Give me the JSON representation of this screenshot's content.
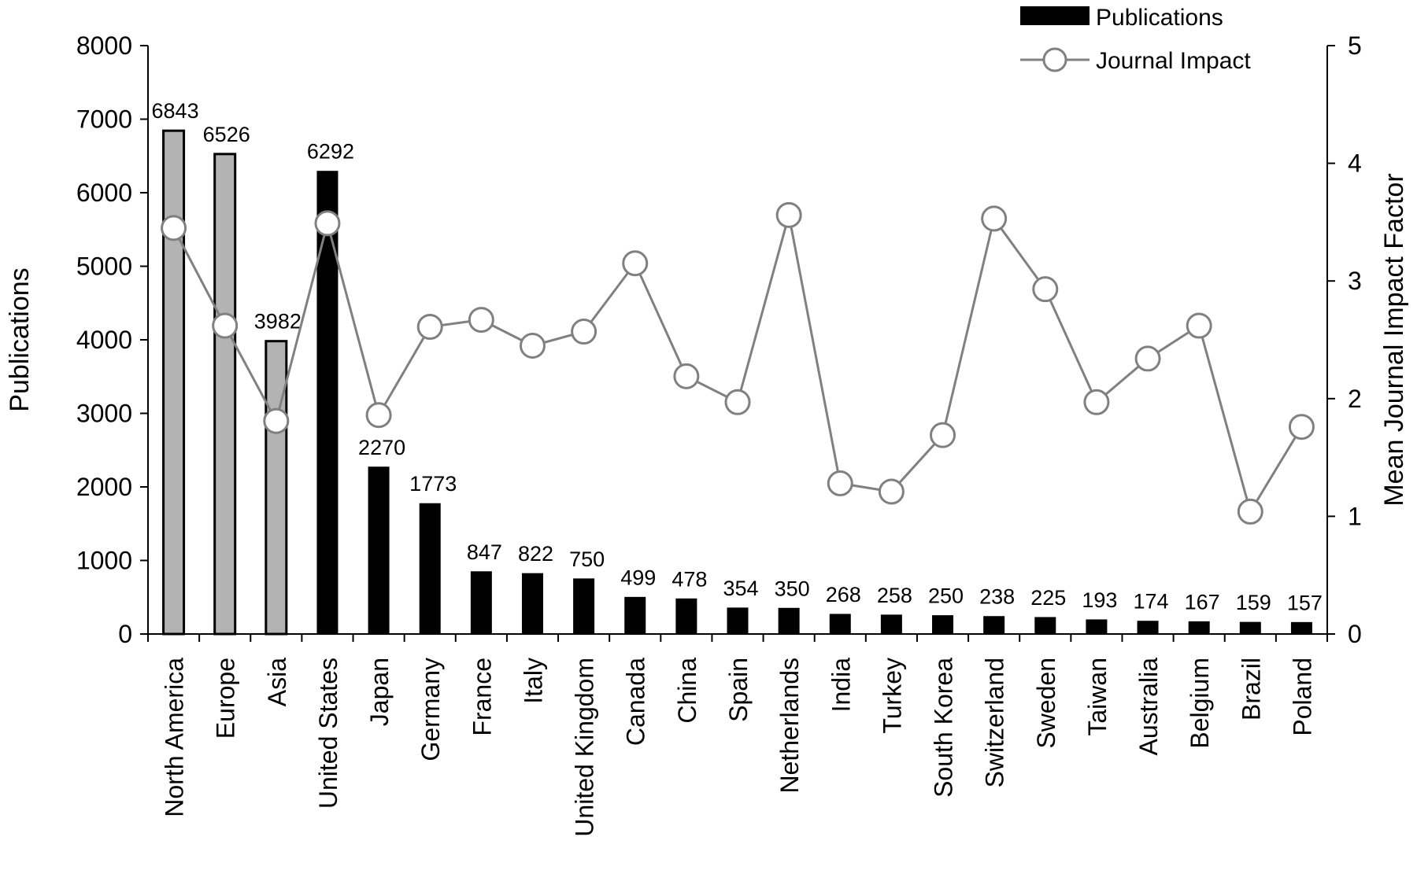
{
  "chart_data": {
    "type": "bar",
    "categories": [
      "North America",
      "Europe",
      "Asia",
      "United States",
      "Japan",
      "Germany",
      "France",
      "Italy",
      "United Kingdom",
      "Canada",
      "China",
      "Spain",
      "Netherlands",
      "India",
      "Turkey",
      "South Korea",
      "Switzerland",
      "Sweden",
      "Taiwan",
      "Australia",
      "Belgium",
      "Brazil",
      "Poland"
    ],
    "series": [
      {
        "name": "Publications",
        "type": "bar",
        "axis": "left",
        "values": [
          6843,
          6526,
          3982,
          6292,
          2270,
          1773,
          847,
          822,
          750,
          499,
          478,
          354,
          350,
          268,
          258,
          250,
          238,
          225,
          193,
          174,
          167,
          159,
          157
        ],
        "data_labels": [
          "6843",
          "6526",
          "3982",
          "6292",
          "2270",
          "1773",
          "847",
          "822",
          "750",
          "499",
          "478",
          "354",
          "350",
          "268",
          "258",
          "250",
          "238",
          "225",
          "193",
          "174",
          "167",
          "159",
          "157"
        ],
        "color": "#000000",
        "region_color": "#b3b3b3",
        "region_count": 3
      },
      {
        "name": "Journal Impact",
        "type": "line",
        "axis": "right",
        "values": [
          3.45,
          2.62,
          1.81,
          3.49,
          1.86,
          2.61,
          2.67,
          2.45,
          2.57,
          3.15,
          2.19,
          1.97,
          3.56,
          1.28,
          1.21,
          1.69,
          3.53,
          2.93,
          1.97,
          2.34,
          2.62,
          1.04,
          1.76
        ],
        "color": "#808080",
        "marker": "open-circle"
      }
    ],
    "ylabel": "Publications",
    "ylabel_right": "Mean Journal Impact Factor",
    "ylim": [
      0,
      8000
    ],
    "ylim_right": [
      0,
      5
    ],
    "yticks": [
      "0",
      "1000",
      "2000",
      "3000",
      "4000",
      "5000",
      "6000",
      "7000",
      "8000"
    ],
    "yticks_right": [
      "0",
      "1",
      "2",
      "3",
      "4",
      "5"
    ],
    "grid": false,
    "legend_position": "top-right"
  }
}
